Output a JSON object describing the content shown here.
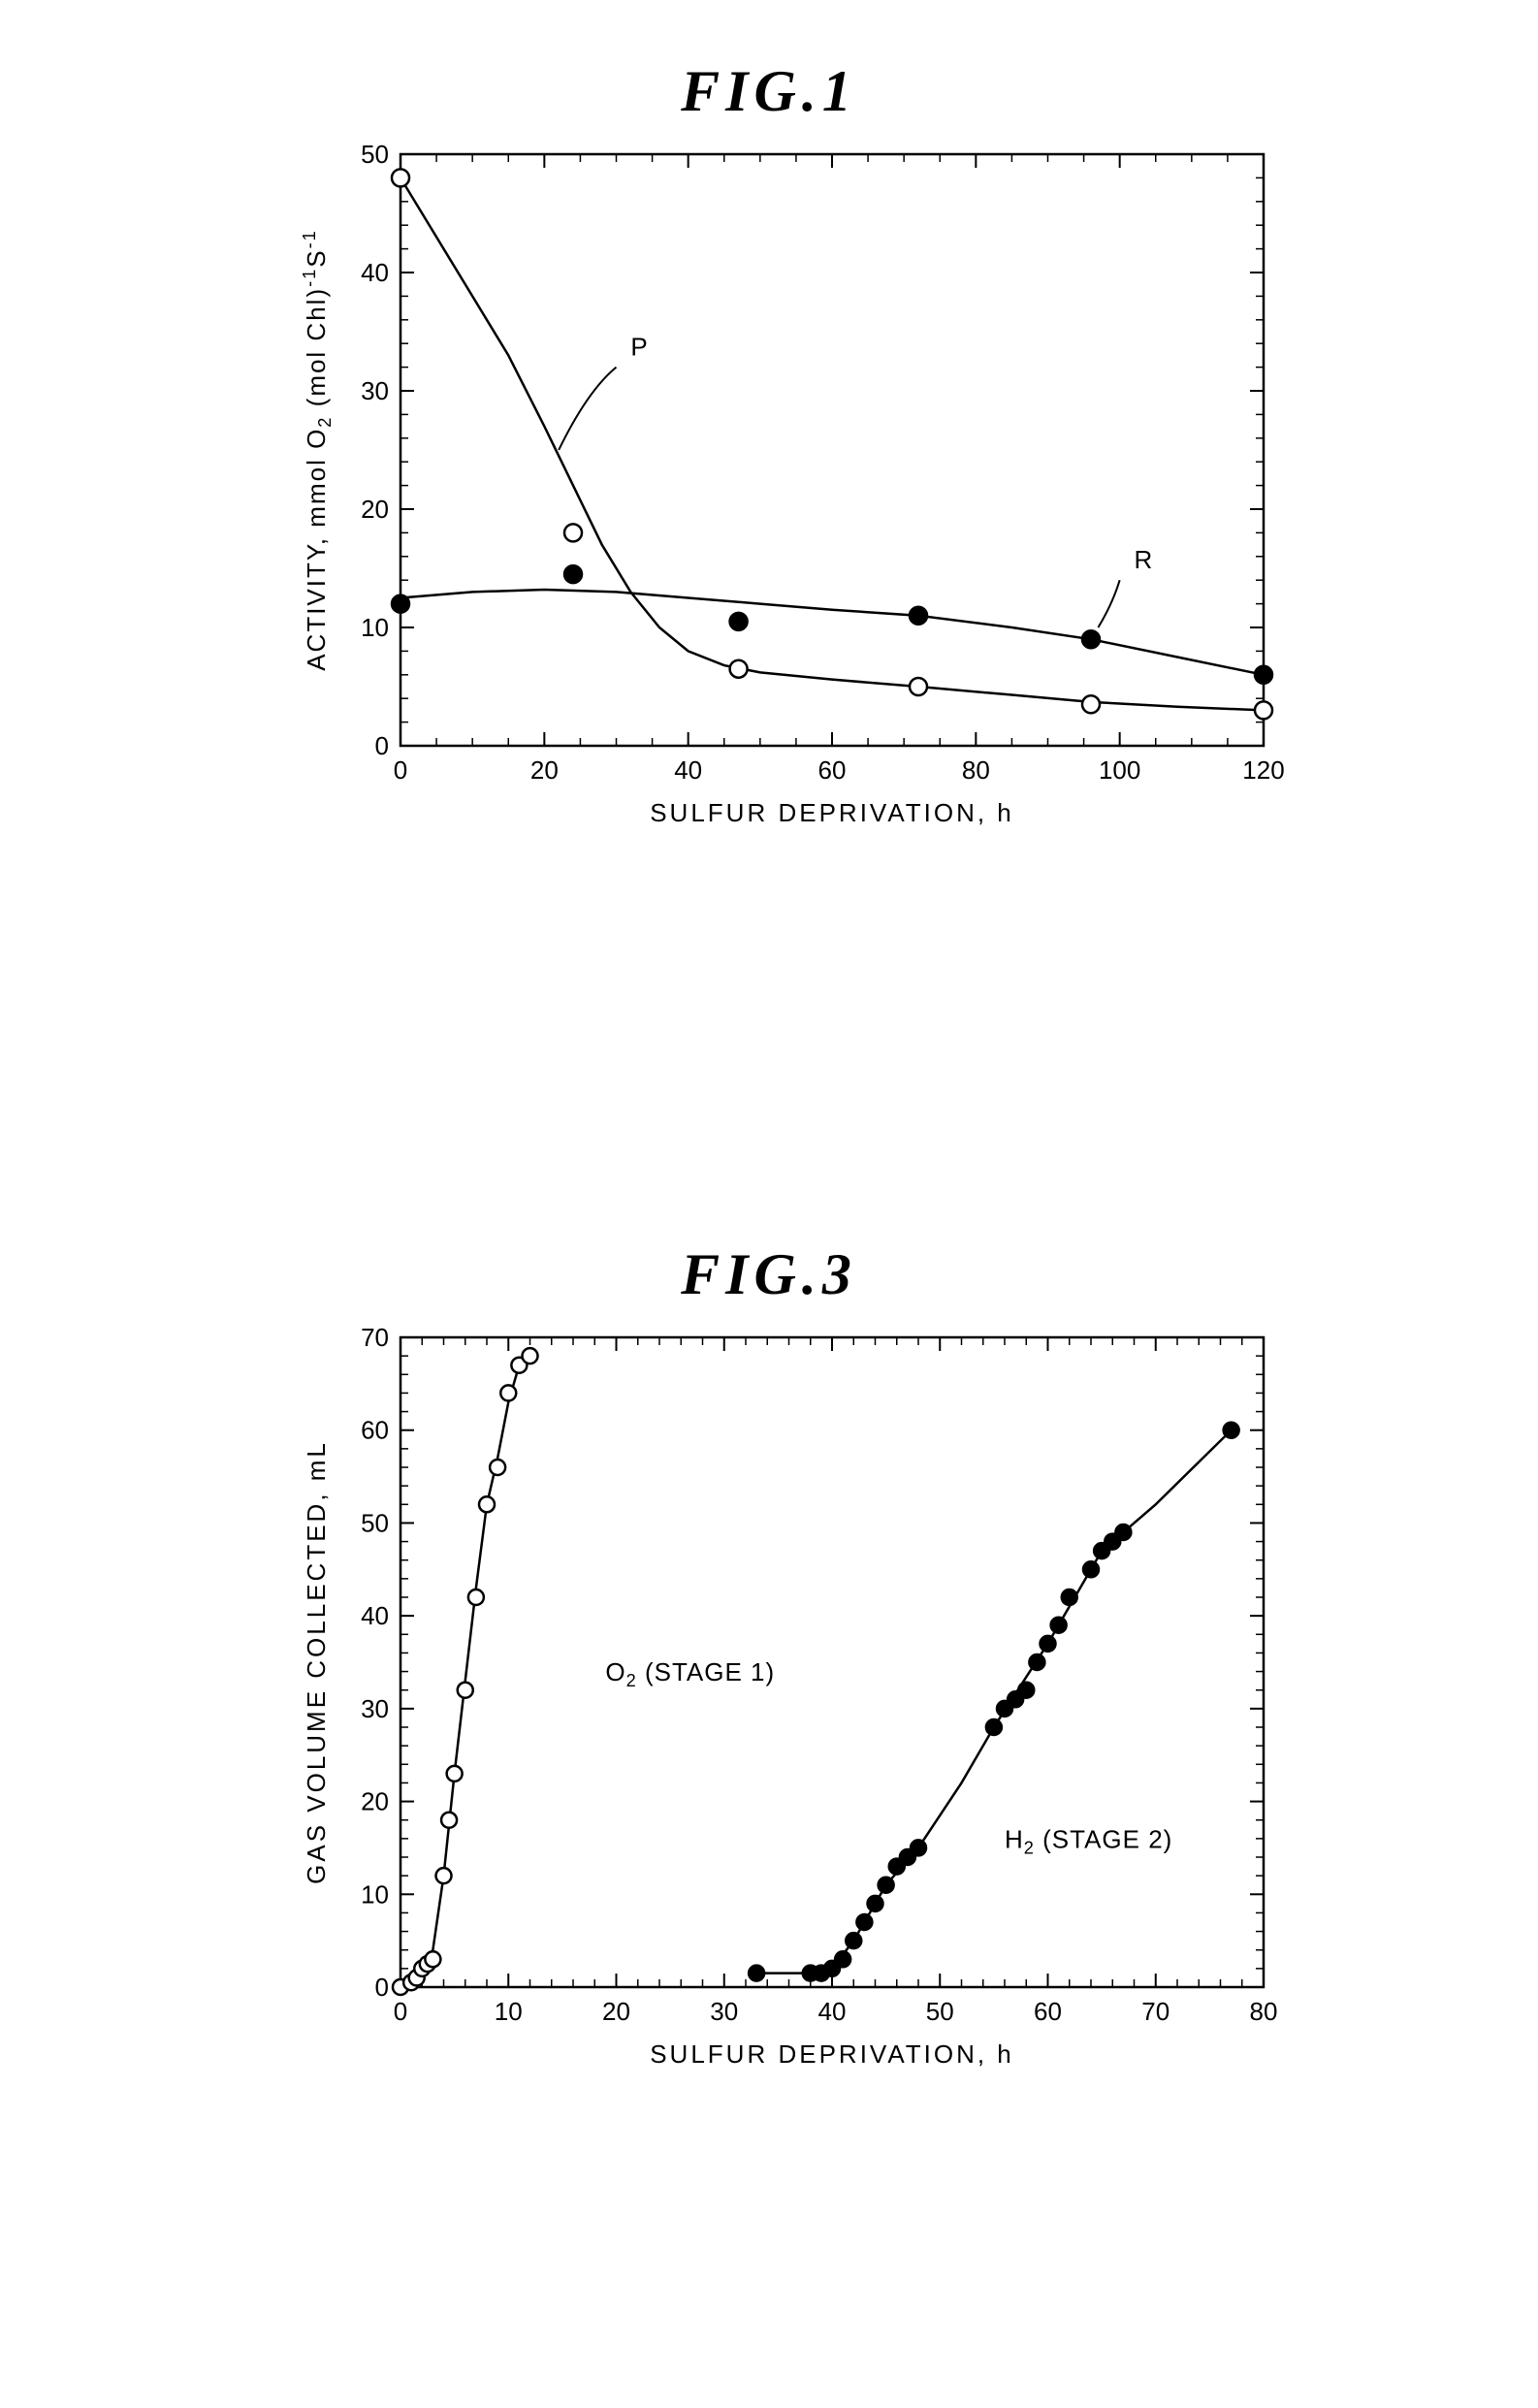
{
  "fig1": {
    "title": "FIG.1",
    "type": "line-scatter",
    "xlabel": "SULFUR DEPRIVATION, h",
    "ylabel": "ACTIVITY, mmol O₂ (mol Chl)⁻¹S⁻¹",
    "xlim": [
      0,
      120
    ],
    "ylim": [
      0,
      50
    ],
    "xticks": [
      0,
      20,
      40,
      60,
      80,
      100,
      120
    ],
    "yticks": [
      0,
      10,
      20,
      30,
      40,
      50
    ],
    "minor_x_step": 5,
    "minor_y_step": 2,
    "background_color": "#ffffff",
    "axis_color": "#000000",
    "axis_width": 2.5,
    "label_fontsize": 26,
    "tick_fontsize": 26,
    "series": [
      {
        "name": "P",
        "label": "P",
        "label_pos": {
          "x": 32,
          "y": 33
        },
        "marker": "open-circle",
        "marker_size": 9,
        "marker_fill": "#ffffff",
        "marker_stroke": "#000000",
        "line_color": "#000000",
        "line_width": 2.5,
        "x": [
          0,
          24,
          47,
          72,
          96,
          120
        ],
        "y": [
          48,
          18,
          6.5,
          5,
          3.5,
          3
        ],
        "curve": [
          [
            0,
            48
          ],
          [
            5,
            43
          ],
          [
            10,
            38
          ],
          [
            15,
            33
          ],
          [
            20,
            27
          ],
          [
            24,
            22
          ],
          [
            28,
            17
          ],
          [
            32,
            13
          ],
          [
            36,
            10
          ],
          [
            40,
            8
          ],
          [
            45,
            6.8
          ],
          [
            50,
            6.2
          ],
          [
            60,
            5.6
          ],
          [
            72,
            5
          ],
          [
            85,
            4.3
          ],
          [
            96,
            3.7
          ],
          [
            108,
            3.3
          ],
          [
            120,
            3
          ]
        ]
      },
      {
        "name": "R",
        "label": "R",
        "label_pos": {
          "x": 102,
          "y": 15
        },
        "marker": "filled-circle",
        "marker_size": 9,
        "marker_fill": "#000000",
        "marker_stroke": "#000000",
        "line_color": "#000000",
        "line_width": 2.5,
        "x": [
          0,
          24,
          47,
          72,
          96,
          120
        ],
        "y": [
          12,
          14.5,
          10.5,
          11,
          9,
          6
        ],
        "curve": [
          [
            0,
            12.5
          ],
          [
            10,
            13
          ],
          [
            20,
            13.2
          ],
          [
            30,
            13
          ],
          [
            40,
            12.5
          ],
          [
            50,
            12
          ],
          [
            60,
            11.5
          ],
          [
            72,
            11
          ],
          [
            85,
            10
          ],
          [
            96,
            9
          ],
          [
            108,
            7.5
          ],
          [
            120,
            6
          ]
        ]
      }
    ]
  },
  "fig3": {
    "title": "FIG.3",
    "type": "line-scatter",
    "xlabel": "SULFUR DEPRIVATION, h",
    "ylabel": "GAS VOLUME COLLECTED, mL",
    "xlim": [
      0,
      80
    ],
    "ylim": [
      0,
      70
    ],
    "xticks": [
      0,
      10,
      20,
      30,
      40,
      50,
      60,
      70,
      80
    ],
    "yticks": [
      0,
      10,
      20,
      30,
      40,
      50,
      60,
      70
    ],
    "minor_x_step": 2,
    "minor_y_step": 2,
    "background_color": "#ffffff",
    "axis_color": "#000000",
    "axis_width": 2.5,
    "label_fontsize": 26,
    "tick_fontsize": 26,
    "series": [
      {
        "name": "O2_stage1",
        "label": "O₂ (STAGE 1)",
        "label_pos": {
          "x": 19,
          "y": 33
        },
        "marker": "open-circle",
        "marker_size": 8,
        "marker_fill": "#ffffff",
        "marker_stroke": "#000000",
        "line_color": "#000000",
        "line_width": 2.5,
        "x": [
          0,
          1,
          1.5,
          2,
          2.5,
          3,
          4,
          4.5,
          5,
          6,
          7,
          8,
          9,
          10,
          11,
          12
        ],
        "y": [
          0,
          0.5,
          1,
          2,
          2.5,
          3,
          12,
          18,
          23,
          32,
          42,
          52,
          56,
          64,
          67,
          68
        ],
        "curve": [
          [
            0,
            0
          ],
          [
            1,
            0.5
          ],
          [
            2,
            2
          ],
          [
            3,
            4
          ],
          [
            4,
            12
          ],
          [
            5,
            23
          ],
          [
            6,
            33
          ],
          [
            7,
            43
          ],
          [
            8,
            52
          ],
          [
            9,
            57
          ],
          [
            10,
            63
          ],
          [
            11,
            67
          ],
          [
            12,
            68
          ]
        ]
      },
      {
        "name": "H2_stage2",
        "label": "H₂ (STAGE 2)",
        "label_pos": {
          "x": 56,
          "y": 15
        },
        "marker": "filled-circle",
        "marker_size": 8,
        "marker_fill": "#000000",
        "marker_stroke": "#000000",
        "line_color": "#000000",
        "line_width": 2.5,
        "x": [
          33,
          38,
          39,
          40,
          41,
          42,
          43,
          44,
          45,
          46,
          47,
          48,
          55,
          56,
          57,
          58,
          59,
          60,
          61,
          62,
          64,
          65,
          66,
          67,
          77
        ],
        "y": [
          1.5,
          1.5,
          1.5,
          2,
          3,
          5,
          7,
          9,
          11,
          13,
          14,
          15,
          28,
          30,
          31,
          32,
          35,
          37,
          39,
          42,
          45,
          47,
          48,
          49,
          60
        ],
        "curve": [
          [
            33,
            1.5
          ],
          [
            38,
            1.5
          ],
          [
            40,
            2
          ],
          [
            42,
            5
          ],
          [
            45,
            11
          ],
          [
            48,
            15
          ],
          [
            52,
            22
          ],
          [
            55,
            28
          ],
          [
            60,
            37
          ],
          [
            65,
            47
          ],
          [
            70,
            52
          ],
          [
            77,
            60
          ]
        ]
      }
    ]
  }
}
